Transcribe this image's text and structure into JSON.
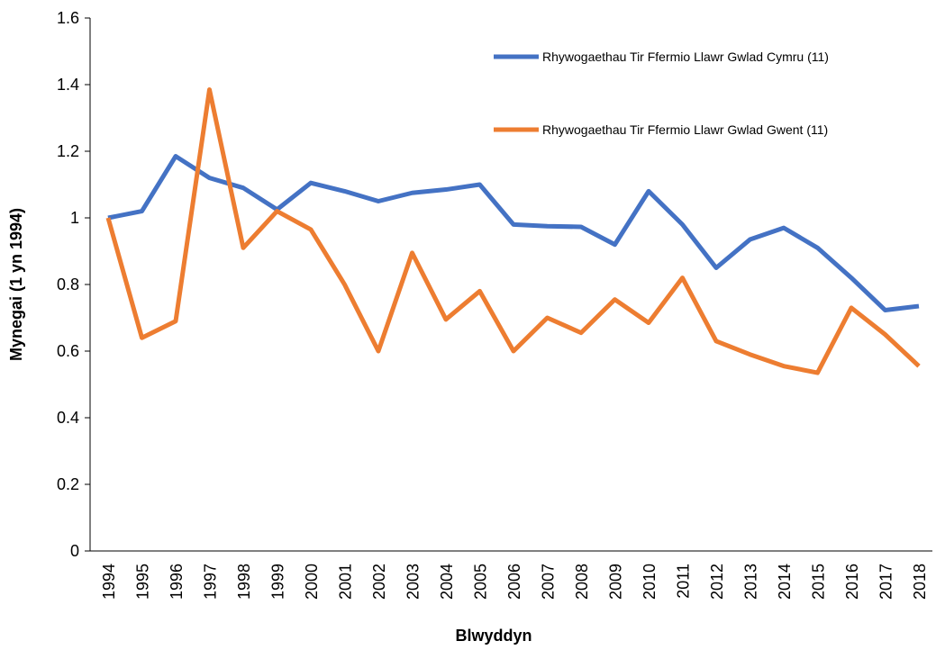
{
  "chart_data": {
    "type": "line",
    "x_label": "Blwyddyn",
    "y_label": "Mynegai (1 yn 1994)",
    "categories": [
      "1994",
      "1995",
      "1996",
      "1997",
      "1998",
      "1999",
      "2000",
      "2001",
      "2002",
      "2003",
      "2004",
      "2005",
      "2006",
      "2007",
      "2008",
      "2009",
      "2010",
      "2011",
      "2012",
      "2013",
      "2014",
      "2015",
      "2016",
      "2017",
      "2018"
    ],
    "series": [
      {
        "name": "Rhywogaethau Tir Ffermio Llawr Gwlad Cymru (11)",
        "color": "#4472c4",
        "values": [
          1.0,
          1.02,
          1.185,
          1.12,
          1.09,
          1.025,
          1.105,
          1.08,
          1.05,
          1.075,
          1.085,
          1.1,
          0.98,
          0.975,
          0.973,
          0.92,
          1.08,
          0.98,
          0.85,
          0.935,
          0.97,
          0.91,
          0.82,
          0.723,
          0.735
        ]
      },
      {
        "name": "Rhywogaethau Tir Ffermio Llawr Gwlad Gwent (11)",
        "color": "#ed7d31",
        "values": [
          1.0,
          0.64,
          0.69,
          1.385,
          0.91,
          1.02,
          0.965,
          0.8,
          0.6,
          0.895,
          0.695,
          0.78,
          0.6,
          0.7,
          0.655,
          0.755,
          0.685,
          0.82,
          0.63,
          0.59,
          0.555,
          0.535,
          0.73,
          0.65,
          0.555
        ]
      }
    ],
    "ylim": [
      0,
      1.6
    ],
    "yticks": [
      0,
      0.2,
      0.4,
      0.6,
      0.8,
      1,
      1.2,
      1.4,
      1.6
    ],
    "grid": false,
    "legend": "upper right"
  }
}
